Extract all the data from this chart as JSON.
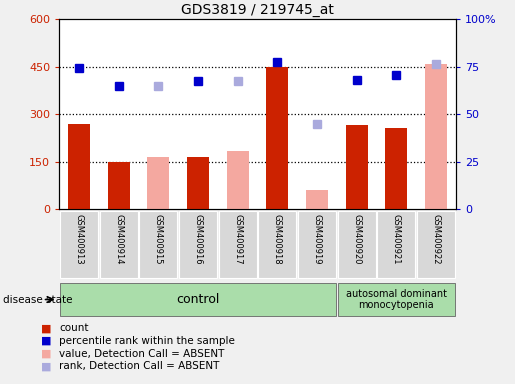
{
  "title": "GDS3819 / 219745_at",
  "samples": [
    "GSM400913",
    "GSM400914",
    "GSM400915",
    "GSM400916",
    "GSM400917",
    "GSM400918",
    "GSM400919",
    "GSM400920",
    "GSM400921",
    "GSM400922"
  ],
  "bar_values": [
    270,
    150,
    null,
    165,
    null,
    450,
    null,
    265,
    255,
    null
  ],
  "bar_values_absent": [
    null,
    null,
    165,
    null,
    185,
    null,
    60,
    null,
    null,
    460
  ],
  "rank_values": [
    445,
    390,
    null,
    405,
    null,
    465,
    null,
    408,
    425,
    null
  ],
  "rank_values_absent": [
    null,
    null,
    390,
    null,
    405,
    null,
    270,
    null,
    null,
    458
  ],
  "ylim_left": [
    0,
    600
  ],
  "ylim_right": [
    0,
    100
  ],
  "yticks_left": [
    0,
    150,
    300,
    450,
    600
  ],
  "yticks_right": [
    0,
    25,
    50,
    75,
    100
  ],
  "ytick_labels_left": [
    "0",
    "150",
    "300",
    "450",
    "600"
  ],
  "ytick_labels_right": [
    "0",
    "25",
    "50",
    "75",
    "100%"
  ],
  "hlines": [
    150,
    300,
    450
  ],
  "bar_color_present": "#cc2200",
  "bar_color_absent": "#f4a8a0",
  "rank_color_present": "#0000cc",
  "rank_color_absent": "#aaaadd",
  "bar_width": 0.55,
  "control_label": "control",
  "disease_label": "autosomal dominant\nmonocytopenia",
  "disease_state_label": "disease state",
  "legend_items": [
    {
      "label": "count",
      "color": "#cc2200"
    },
    {
      "label": "percentile rank within the sample",
      "color": "#0000cc"
    },
    {
      "label": "value, Detection Call = ABSENT",
      "color": "#f4a8a0"
    },
    {
      "label": "rank, Detection Call = ABSENT",
      "color": "#aaaadd"
    }
  ],
  "fig_bg": "#f0f0f0",
  "plot_bg": "#ffffff",
  "label_box_bg": "#d8d8d8",
  "control_bg": "#aaddaa",
  "disease_bg": "#aaddaa"
}
